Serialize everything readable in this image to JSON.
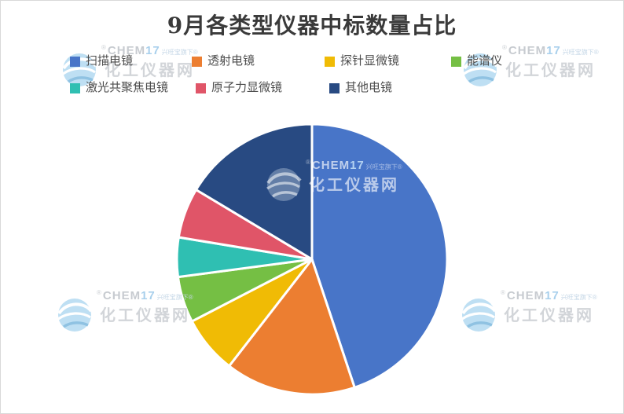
{
  "chart_data": {
    "type": "pie",
    "title": "9月各类型仪器中标数量占比",
    "legend_position": "top",
    "direction": "clockwise",
    "start_angle_deg": 0,
    "series": [
      {
        "name": "扫描电镜",
        "percent": 44.9,
        "color": "#4875C8"
      },
      {
        "name": "透射电镜",
        "percent": 15.6,
        "color": "#EC7E31"
      },
      {
        "name": "探针显微镜",
        "percent": 6.9,
        "color": "#F0BB05"
      },
      {
        "name": "能谱仪",
        "percent": 5.5,
        "color": "#75BF44"
      },
      {
        "name": "激光共聚焦电镜",
        "percent": 4.7,
        "color": "#2FBFB2"
      },
      {
        "name": "原子力显微镜",
        "percent": 6.0,
        "color": "#E05568"
      },
      {
        "name": "其他电镜",
        "percent": 16.4,
        "color": "#284A82"
      }
    ]
  },
  "watermark": {
    "brand": "CHEM17",
    "tagline": "兴旺宝旗下",
    "site": "化工仪器网",
    "registered": "®"
  }
}
